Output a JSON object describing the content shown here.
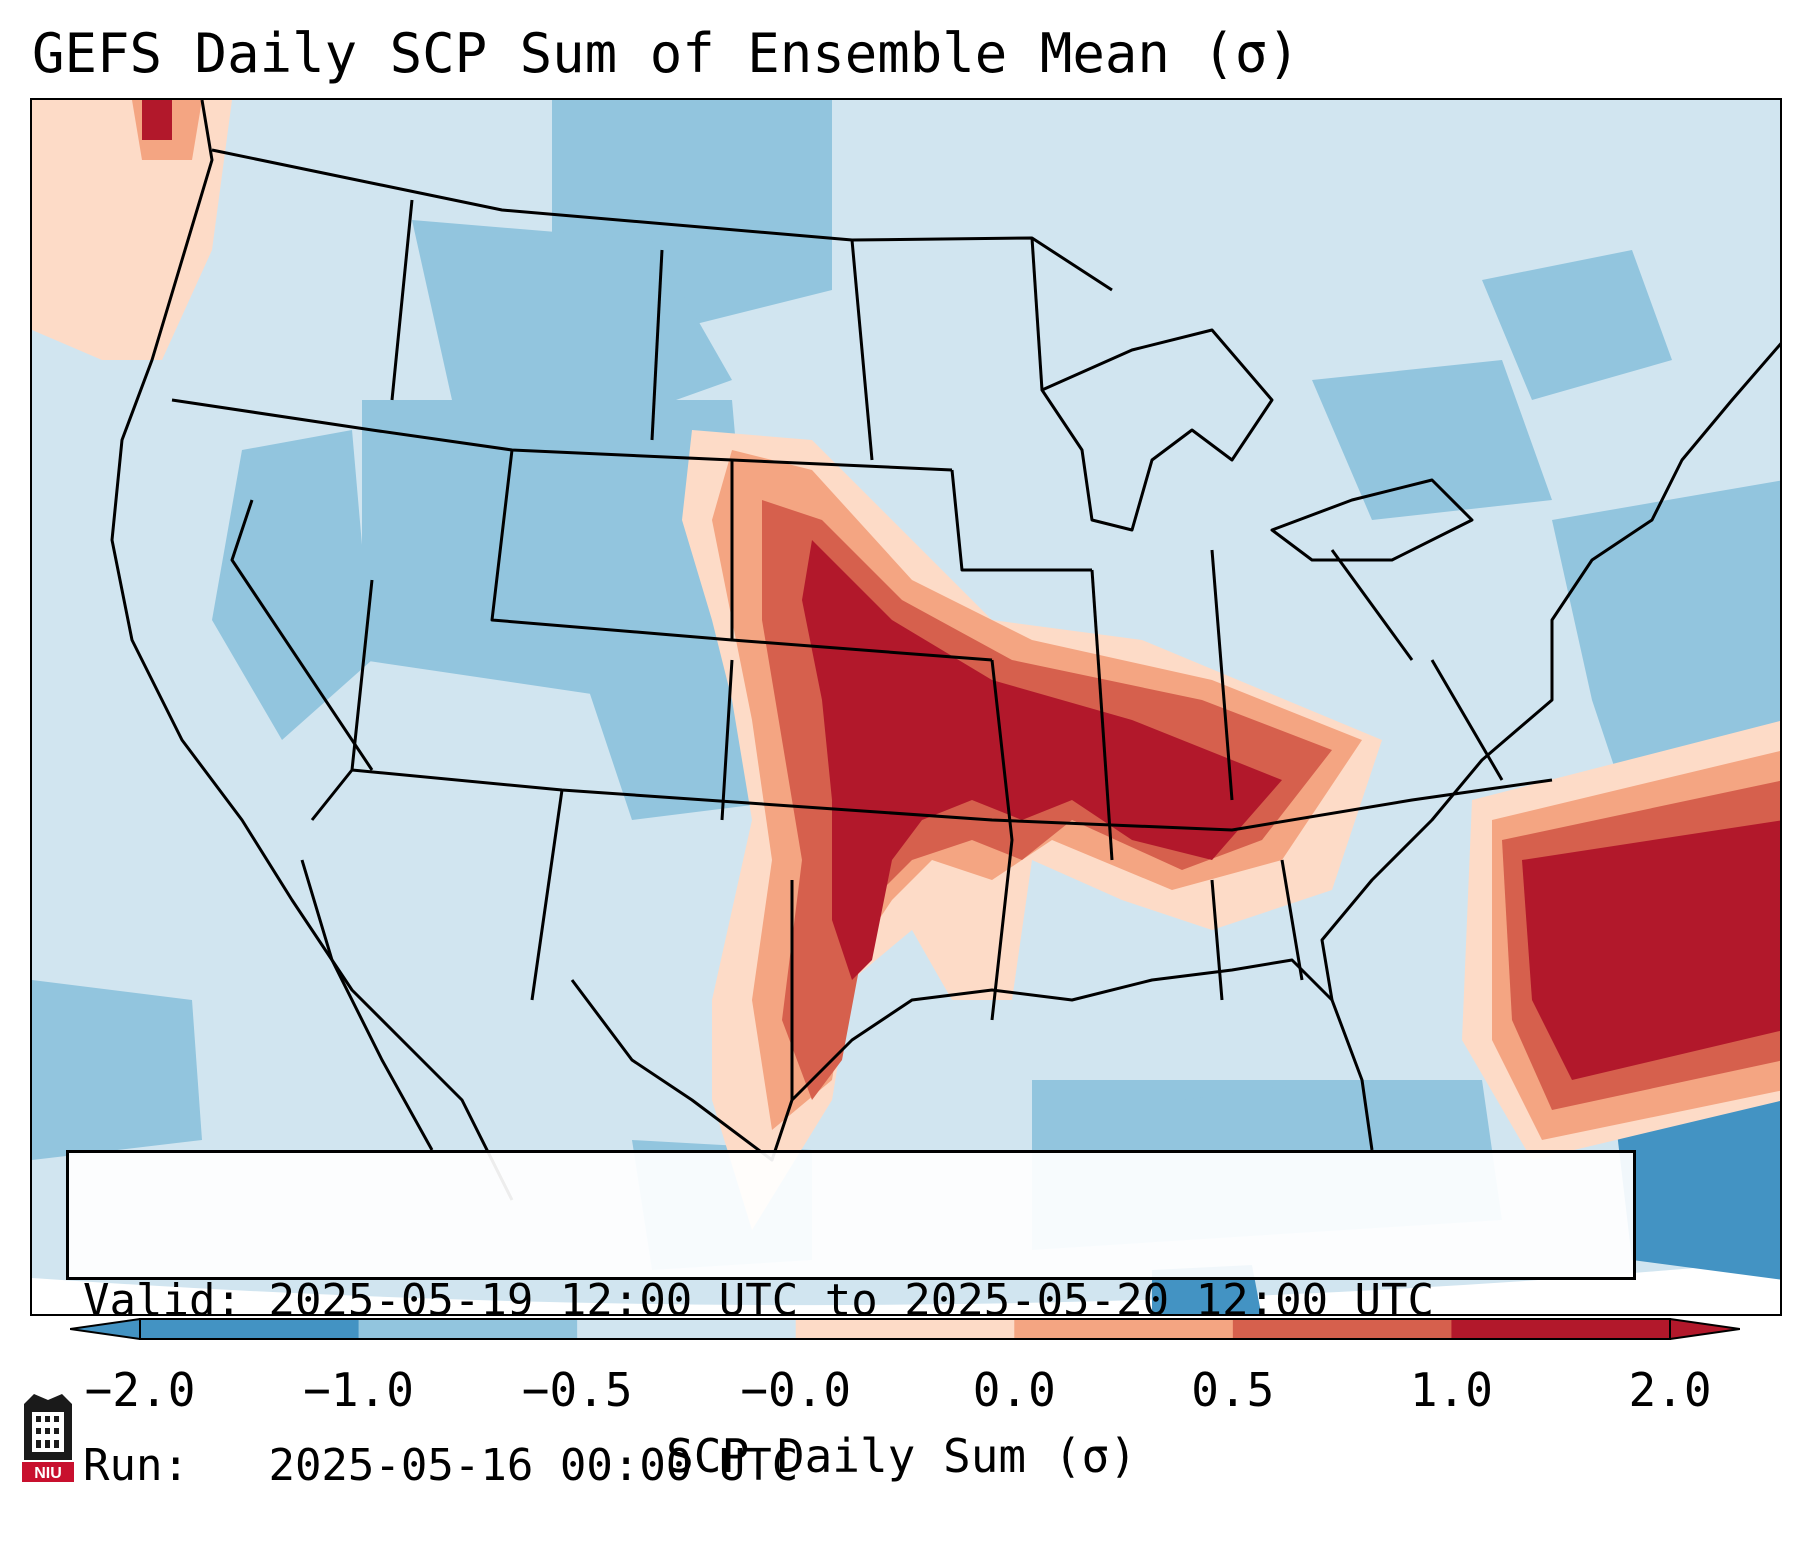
{
  "title": "GEFS Daily SCP Sum of Ensemble Mean (σ)",
  "info": {
    "valid_label": "Valid:",
    "valid_value": "2025-05-19 12:00 UTC to 2025-05-20 12:00 UTC",
    "run_label": "Run:",
    "run_value": "2025-05-16 00:00 UTC"
  },
  "colorbar": {
    "label": "SCP Daily Sum (σ)",
    "ticks": [
      "−2.0",
      "−1.0",
      "−0.5",
      "−0.0",
      "0.0",
      "0.5",
      "1.0",
      "2.0"
    ],
    "colors": [
      "#4393c3",
      "#92c5de",
      "#d1e5f0",
      "#fddbc7",
      "#f4a582",
      "#d6604d",
      "#b2182b"
    ]
  },
  "logo": {
    "label": "NIU"
  }
}
